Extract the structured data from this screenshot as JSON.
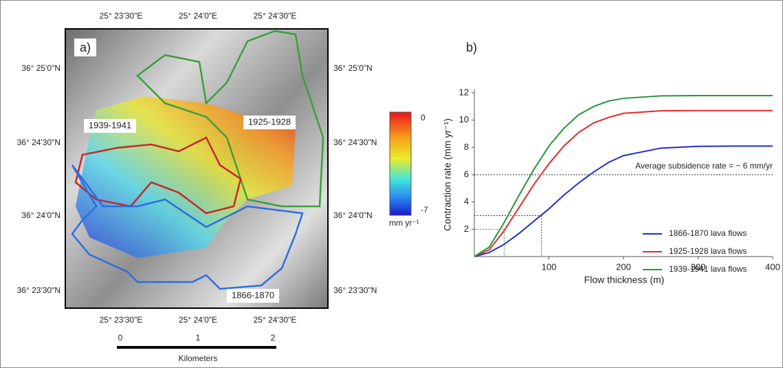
{
  "map": {
    "panel_label": "a)",
    "top_longitudes": [
      "25° 23'30\"E",
      "25° 24'0\"E",
      "25° 24'30\"E"
    ],
    "bottom_longitudes": [
      "25° 23'30\"E",
      "25° 24'0\"E",
      "25° 24'30\"E"
    ],
    "left_latitudes": [
      "36° 25'0\"N",
      "36° 24'30\"N",
      "36° 24'0\"N",
      "36° 23'30\"N"
    ],
    "right_latitudes": [
      "36° 25'0\"N",
      "36° 24'30\"N",
      "36° 24'0\"N",
      "36° 23'30\"N"
    ],
    "flow_labels": [
      {
        "text": "1925-1928",
        "color": "#3aa03a"
      },
      {
        "text": "1939-1941",
        "color": "#c62828"
      },
      {
        "text": "1866-1870",
        "color": "#2a2aa8"
      }
    ],
    "colorbar": {
      "max": 0,
      "min": -7,
      "unit": "mm yr⁻¹"
    },
    "scale_bar": {
      "ticks": [
        0,
        1,
        2
      ],
      "unit": "Kilometers"
    }
  },
  "chart_data": {
    "type": "line",
    "panel_label": "b)",
    "x_label": "Flow thickness (m)",
    "y_label": "Contraction rate (mm yr⁻¹)",
    "x": [
      0,
      20,
      40,
      60,
      80,
      100,
      120,
      140,
      160,
      180,
      200,
      250,
      300,
      350,
      400
    ],
    "series": [
      {
        "name": "1866-1870 lava flows",
        "color": "#1f2fc8",
        "values": [
          0,
          0.3,
          0.9,
          1.7,
          2.6,
          3.5,
          4.5,
          5.4,
          6.2,
          6.9,
          7.4,
          7.95,
          8.08,
          8.1,
          8.1
        ]
      },
      {
        "name": "1925-1928 lava flows",
        "color": "#e02a2a",
        "values": [
          0,
          0.5,
          1.9,
          3.6,
          5.3,
          6.8,
          8.1,
          9.1,
          9.8,
          10.2,
          10.5,
          10.68,
          10.7,
          10.7,
          10.7
        ]
      },
      {
        "name": "1939-1941 lava flows",
        "color": "#23963a",
        "values": [
          0,
          0.7,
          2.5,
          4.5,
          6.4,
          8.1,
          9.4,
          10.4,
          11.0,
          11.4,
          11.6,
          11.78,
          11.8,
          11.8,
          11.8
        ]
      }
    ],
    "xlim": [
      0,
      400
    ],
    "ylim": [
      0,
      12
    ],
    "xticks": [
      100,
      200,
      300,
      400
    ],
    "yticks": [
      2,
      4,
      6,
      8,
      10,
      12
    ],
    "reference_line": {
      "y": 6,
      "label": "Average subsidence rate = ~ 6 mm/yr"
    },
    "guides": [
      {
        "x": 90,
        "y": 3,
        "color": "#333333"
      },
      {
        "x": 40,
        "y": 2,
        "color": "#23963a"
      }
    ],
    "legend_position": "right"
  }
}
